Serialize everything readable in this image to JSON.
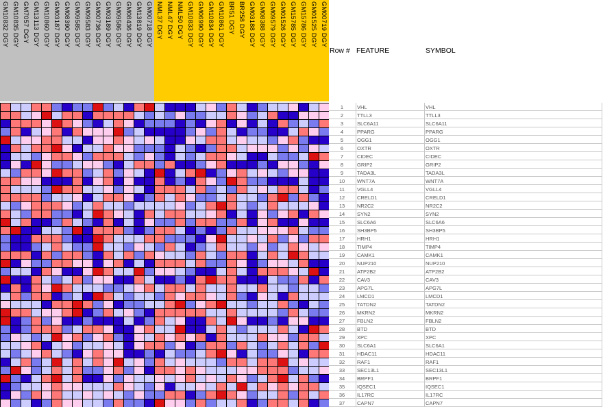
{
  "header": {
    "row_num": "Row #",
    "feature": "FEATURE",
    "symbol": "SYMBOL"
  },
  "colors": {
    "group_1": "#c0c0c0",
    "group_2": "#ffcc00",
    "scale": {
      "-3": "#2600c8",
      "-2": "#7b7bf0",
      "-1": "#ccccff",
      "1": "#ffcdee",
      "2": "#ff7878",
      "3": "#dd1111"
    }
  },
  "chart_data": {
    "type": "heatmap",
    "columns": [
      "GM10832 DGY",
      "GM10835 DGY",
      "GM7057 DGY",
      "GM13113 DGY",
      "GM10860 DGY",
      "GM03187 DGY",
      "GM08390 DGY",
      "GM09585 DGY",
      "GM09583 DGY",
      "GM00736 DGY",
      "GM03189 DGY",
      "GM09586 DGY",
      "GM08436 DGY",
      "GM13819 DGY",
      "GM00718 DGY",
      "NML37 DGY",
      "NML47 DGY",
      "NML50 DGY",
      "GM10833 DGY",
      "GM06990 DGY",
      "GM10834 DGY",
      "GM10861 DGY",
      "BR51 DGY",
      "BR258 DGY",
      "GM03188 DGY",
      "GM08388 DGY",
      "GM09579 DGY",
      "GM01526 DGY",
      "GM15785 DGY",
      "GM15786 DGY",
      "GM01525 DGY",
      "GM00719 DGY"
    ],
    "column_groups": [
      {
        "color": "#c0c0c0",
        "count": 15
      },
      {
        "color": "#ffcc00",
        "count": 17
      }
    ],
    "rows": [
      {
        "n": "1",
        "feature": "VHL",
        "symbol": "VHL"
      },
      {
        "n": "2",
        "feature": "TTLL3",
        "symbol": "TTLL3"
      },
      {
        "n": "3",
        "feature": "SLC6A11",
        "symbol": "SLC6A11"
      },
      {
        "n": "4",
        "feature": "PPARG",
        "symbol": "PPARG"
      },
      {
        "n": "5",
        "feature": "OGG1",
        "symbol": "OGG1"
      },
      {
        "n": "6",
        "feature": "OXTR",
        "symbol": "OXTR"
      },
      {
        "n": "7",
        "feature": "CIDEC",
        "symbol": "CIDEC"
      },
      {
        "n": "8",
        "feature": "GRIP2",
        "symbol": "GRIP2"
      },
      {
        "n": "9",
        "feature": "TADA3L",
        "symbol": "TADA3L"
      },
      {
        "n": "10",
        "feature": "WNT7A",
        "symbol": "WNT7A"
      },
      {
        "n": "11",
        "feature": "VGLL4",
        "symbol": "VGLL4"
      },
      {
        "n": "12",
        "feature": "CRELD1",
        "symbol": "CRELD1"
      },
      {
        "n": "13",
        "feature": "NR2C2",
        "symbol": "NR2C2"
      },
      {
        "n": "14",
        "feature": "SYN2",
        "symbol": "SYN2"
      },
      {
        "n": "15",
        "feature": "SLC6A6",
        "symbol": "SLC6A6"
      },
      {
        "n": "16",
        "feature": "SH3BP5",
        "symbol": "SH3BP5"
      },
      {
        "n": "17",
        "feature": "HRH1",
        "symbol": "HRH1"
      },
      {
        "n": "18",
        "feature": "TIMP4",
        "symbol": "TIMP4"
      },
      {
        "n": "19",
        "feature": "CAMK1",
        "symbol": "CAMK1"
      },
      {
        "n": "20",
        "feature": "NUP210",
        "symbol": "NUP210"
      },
      {
        "n": "21",
        "feature": "ATP2B2",
        "symbol": "ATP2B2"
      },
      {
        "n": "22",
        "feature": "CAV3",
        "symbol": "CAV3"
      },
      {
        "n": "23",
        "feature": "APG7L",
        "symbol": "APG7L"
      },
      {
        "n": "24",
        "feature": "LMCD1",
        "symbol": "LMCD1"
      },
      {
        "n": "25",
        "feature": "TATDN2",
        "symbol": "TATDN2"
      },
      {
        "n": "26",
        "feature": "MKRN2",
        "symbol": "MKRN2"
      },
      {
        "n": "27",
        "feature": "FBLN2",
        "symbol": "FBLN2"
      },
      {
        "n": "28",
        "feature": "BTD",
        "symbol": "BTD"
      },
      {
        "n": "29",
        "feature": "XPC",
        "symbol": "XPC"
      },
      {
        "n": "30",
        "feature": "SLC6A1",
        "symbol": "SLC6A1"
      },
      {
        "n": "31",
        "feature": "HDAC11",
        "symbol": "HDAC11"
      },
      {
        "n": "32",
        "feature": "RAF1",
        "symbol": "RAF1"
      },
      {
        "n": "33",
        "feature": "SEC13L1",
        "symbol": "SEC13L1"
      },
      {
        "n": "34",
        "feature": "BRPF1",
        "symbol": "BRPF1"
      },
      {
        "n": "35",
        "feature": "IQSEC1",
        "symbol": "IQSEC1"
      },
      {
        "n": "36",
        "feature": "IL17RC",
        "symbol": "IL17RC"
      },
      {
        "n": "37",
        "feature": "CAPN7",
        "symbol": "CAPN7"
      }
    ],
    "values": [
      [
        2,
        -1,
        -1,
        2,
        2,
        -2,
        -3,
        -2,
        -2,
        3,
        -2,
        -1,
        -3,
        2,
        3,
        -1,
        -3,
        -3,
        -3,
        -1,
        1,
        -2,
        2,
        -1,
        -3,
        -2,
        -1,
        -1,
        1,
        -3,
        -1,
        1
      ],
      [
        2,
        2,
        -1,
        1,
        3,
        -1,
        2,
        2,
        -3,
        2,
        2,
        2,
        2,
        -1,
        -2,
        -1,
        -2,
        1,
        -2,
        -2,
        -1,
        -1,
        2,
        1,
        -2,
        -1,
        2,
        -3,
        -3,
        1,
        1,
        1
      ],
      [
        -3,
        2,
        2,
        2,
        1,
        3,
        2,
        1,
        -2,
        -3,
        -1,
        2,
        1,
        -3,
        -2,
        -2,
        -2,
        -3,
        -2,
        -3,
        1,
        2,
        -3,
        1,
        -3,
        -1,
        -3,
        2,
        -2,
        -1,
        -2,
        2
      ],
      [
        -2,
        2,
        -3,
        -1,
        1,
        2,
        -3,
        2,
        1,
        1,
        1,
        3,
        -2,
        -1,
        -3,
        -3,
        -3,
        -3,
        -2,
        1,
        -2,
        2,
        -1,
        -3,
        -2,
        -2,
        -3,
        -3,
        -1,
        2,
        1,
        -2
      ],
      [
        3,
        -1,
        1,
        1,
        2,
        2,
        -1,
        -1,
        -3,
        1,
        1,
        2,
        1,
        -1,
        1,
        -1,
        -3,
        -3,
        1,
        -1,
        2,
        2,
        -1,
        1,
        -1,
        -1,
        -2,
        1,
        2,
        -2,
        -3,
        -3
      ],
      [
        -3,
        2,
        -1,
        2,
        2,
        3,
        1,
        -3,
        -1,
        -1,
        2,
        1,
        1,
        -2,
        -2,
        -2,
        -3,
        -1,
        -2,
        -3,
        -2,
        2,
        2,
        -1,
        1,
        1,
        1,
        -2,
        1,
        -2,
        1,
        -1
      ],
      [
        -3,
        -1,
        -1,
        -2,
        1,
        2,
        2,
        1,
        -2,
        2,
        2,
        2,
        -1,
        -2,
        1,
        -2,
        -3,
        -1,
        -2,
        -1,
        2,
        2,
        1,
        -1,
        -3,
        -3,
        -1,
        -2,
        -2,
        -1,
        3,
        2
      ],
      [
        -3,
        1,
        -3,
        3,
        1,
        -2,
        -2,
        -1,
        1,
        1,
        -2,
        -3,
        -1,
        2,
        2,
        -2,
        2,
        -3,
        -3,
        -2,
        1,
        2,
        -3,
        -3,
        -3,
        -2,
        -3,
        1,
        1,
        -2,
        -3,
        1
      ],
      [
        -1,
        -2,
        2,
        2,
        1,
        3,
        2,
        2,
        -2,
        -1,
        2,
        -2,
        1,
        -1,
        -3,
        3,
        -3,
        -1,
        2,
        3,
        -3,
        -2,
        1,
        2,
        -1,
        1,
        -1,
        -2,
        1,
        1,
        -3,
        -3
      ],
      [
        2,
        2,
        1,
        1,
        -3,
        -3,
        -3,
        2,
        -3,
        1,
        2,
        -3,
        1,
        -3,
        -3,
        2,
        -3,
        -2,
        -3,
        2,
        1,
        -2,
        3,
        2,
        -2,
        -2,
        -3,
        -3,
        -3,
        -1,
        -3,
        -3
      ],
      [
        2,
        -1,
        -1,
        -1,
        -2,
        3,
        2,
        2,
        -1,
        -1,
        1,
        -2,
        1,
        -1,
        -3,
        2,
        2,
        2,
        -1,
        2,
        -2,
        -1,
        -2,
        2,
        -1,
        1,
        -1,
        2,
        2,
        -1,
        -3,
        -2
      ],
      [
        2,
        2,
        2,
        2,
        -2,
        -1,
        -1,
        1,
        -3,
        -1,
        2,
        2,
        1,
        -3,
        -2,
        2,
        -1,
        2,
        1,
        -2,
        -2,
        -1,
        2,
        -1,
        -1,
        -2,
        2,
        3,
        -2,
        2,
        -2,
        -3
      ],
      [
        -1,
        -2,
        1,
        2,
        2,
        2,
        1,
        -2,
        -1,
        2,
        -1,
        -1,
        -2,
        -1,
        -1,
        -1,
        -1,
        1,
        -2,
        -1,
        2,
        3,
        2,
        -1,
        -2,
        -1,
        2,
        -1,
        -1,
        -1,
        1,
        -3
      ],
      [
        2,
        -1,
        -2,
        2,
        2,
        -2,
        -2,
        -3,
        -1,
        3,
        2,
        1,
        -1,
        -3,
        2,
        -1,
        2,
        2,
        -1,
        -1,
        1,
        2,
        -3,
        -1,
        -3,
        1,
        -2,
        1,
        2,
        -3,
        2,
        1
      ],
      [
        3,
        -1,
        2,
        -3,
        -3,
        -2,
        2,
        -1,
        -2,
        -3,
        2,
        -3,
        -1,
        -3,
        1,
        -2,
        -2,
        2,
        -2,
        2,
        2,
        -2,
        -2,
        2,
        -3,
        1,
        2,
        -3,
        -3,
        1,
        -3,
        -3
      ],
      [
        2,
        3,
        -3,
        -3,
        -1,
        -1,
        -2,
        3,
        -3,
        2,
        2,
        2,
        -2,
        -3,
        -2,
        2,
        2,
        -1,
        -3,
        -2,
        -3,
        -2,
        2,
        -1,
        -1,
        1,
        1,
        1,
        2,
        -1,
        -2,
        -2
      ],
      [
        -2,
        -3,
        -3,
        2,
        2,
        2,
        -2,
        -3,
        -3,
        3,
        2,
        -1,
        -1,
        -1,
        2,
        2,
        -2,
        -2,
        -2,
        -3,
        1,
        3,
        -1,
        -1,
        1,
        -1,
        2,
        -2,
        1,
        -2,
        2,
        2
      ],
      [
        -2,
        -3,
        -3,
        -2,
        -1,
        2,
        -1,
        -2,
        -2,
        3,
        -1,
        -1,
        -2,
        1,
        -1,
        -2,
        2,
        -1,
        -3,
        -2,
        -1,
        2,
        -1,
        -1,
        -2,
        1,
        -2,
        -1,
        2,
        1,
        -1,
        1
      ],
      [
        2,
        2,
        2,
        -3,
        2,
        -2,
        2,
        2,
        -2,
        -3,
        2,
        -1,
        2,
        -2,
        2,
        1,
        -1,
        -1,
        -2,
        2,
        -1,
        -2,
        2,
        2,
        -3,
        -1,
        2,
        -1,
        3,
        2,
        -1,
        -1
      ],
      [
        3,
        -3,
        1,
        -2,
        -2,
        2,
        2,
        1,
        1,
        -3,
        1,
        2,
        -3,
        -1,
        -3,
        2,
        2,
        2,
        -1,
        2,
        -2,
        -2,
        2,
        1,
        -3,
        -2,
        1,
        1,
        -1,
        2,
        -3,
        -3
      ],
      [
        -2,
        -1,
        -1,
        -3,
        2,
        1,
        -3,
        -3,
        1,
        3,
        2,
        -1,
        -1,
        3,
        -2,
        1,
        1,
        -1,
        -2,
        -3,
        -3,
        -1,
        2,
        -1,
        -3,
        2,
        2,
        2,
        1,
        -1,
        3,
        -3
      ],
      [
        3,
        -3,
        -3,
        2,
        -1,
        -2,
        -1,
        2,
        -2,
        1,
        1,
        -3,
        -3,
        2,
        -1,
        -3,
        -3,
        -2,
        -3,
        2,
        3,
        2,
        2,
        -3,
        -3,
        -3,
        -1,
        -2,
        -2,
        2,
        -3,
        2
      ],
      [
        -3,
        2,
        -3,
        2,
        1,
        3,
        2,
        -1,
        -1,
        -1,
        -2,
        -2,
        -1,
        1,
        2,
        -1,
        2,
        2,
        -1,
        2,
        -1,
        -1,
        2,
        -1,
        -1,
        2,
        -1,
        -1,
        -2,
        -1,
        -1,
        -2
      ],
      [
        -1,
        2,
        -2,
        2,
        2,
        -3,
        -2,
        -1,
        -3,
        3,
        2,
        -1,
        -2,
        -1,
        -1,
        -2,
        2,
        1,
        2,
        2,
        1,
        -1,
        2,
        -2,
        -3,
        1,
        -1,
        -3,
        2,
        -1,
        -1,
        -1
      ],
      [
        1,
        -1,
        -1,
        -1,
        -3,
        2,
        2,
        3,
        2,
        -2,
        1,
        -3,
        -2,
        -2,
        -1,
        -1,
        2,
        3,
        -2,
        1,
        2,
        3,
        -1,
        -1,
        -2,
        -1,
        -1,
        2,
        -2,
        -3,
        -1,
        -2
      ],
      [
        3,
        2,
        2,
        -1,
        1,
        1,
        2,
        3,
        -3,
        -2,
        2,
        -1,
        1,
        -2,
        -3,
        2,
        2,
        2,
        2,
        2,
        -1,
        -1,
        2,
        -1,
        -1,
        -1,
        -1,
        -2,
        2,
        -1,
        -2,
        -2
      ],
      [
        3,
        -3,
        -2,
        2,
        -2,
        1,
        -3,
        -3,
        -2,
        -3,
        -3,
        -3,
        -1,
        -3,
        -2,
        2,
        -1,
        1,
        -3,
        -3,
        2,
        -1,
        3,
        1,
        -3,
        -3,
        -2,
        -3,
        1,
        1,
        -3,
        -3
      ],
      [
        -2,
        -3,
        -2,
        2,
        2,
        2,
        -2,
        -1,
        2,
        2,
        1,
        -3,
        -3,
        1,
        2,
        -1,
        -1,
        3,
        -3,
        -3,
        -1,
        2,
        -1,
        -2,
        -1,
        -1,
        -1,
        2,
        -1,
        -3,
        3,
        2
      ],
      [
        -2,
        1,
        -1,
        -2,
        -1,
        3,
        1,
        2,
        -2,
        1,
        2,
        -2,
        -3,
        1,
        -1,
        2,
        1,
        2,
        1,
        2,
        -3,
        2,
        -1,
        -1,
        -1,
        2,
        1,
        1,
        -2,
        2,
        2,
        -1
      ],
      [
        -1,
        -1,
        1,
        2,
        -3,
        -1,
        1,
        -2,
        -1,
        -1,
        1,
        -1,
        -3,
        1,
        2,
        2,
        -2,
        1,
        -3,
        -2,
        2,
        2,
        -2,
        2,
        -1,
        -2,
        -1,
        2,
        -1,
        2,
        -2,
        3
      ],
      [
        -1,
        -2,
        -1,
        1,
        2,
        -1,
        -2,
        -3,
        1,
        2,
        1,
        1,
        -3,
        -3,
        -2,
        -3,
        -1,
        -2,
        -2,
        -1,
        2,
        3,
        1,
        -3,
        -1,
        -2,
        -2,
        1,
        -1,
        -3,
        2,
        2
      ],
      [
        -3,
        -1,
        2,
        -2,
        -1,
        3,
        -1,
        2,
        -1,
        2,
        1,
        3,
        -1,
        1,
        -2,
        2,
        -1,
        1,
        -1,
        -1,
        -1,
        -2,
        2,
        2,
        -1,
        2,
        2,
        3,
        -1,
        1,
        -1,
        -1
      ],
      [
        -2,
        3,
        1,
        -2,
        -1,
        2,
        -1,
        2,
        -2,
        -2,
        1,
        2,
        -2,
        1,
        -3,
        2,
        2,
        1,
        2,
        1,
        -1,
        -1,
        -1,
        1,
        1,
        2,
        2,
        2,
        -2,
        -1,
        -1,
        1
      ],
      [
        3,
        -2,
        -3,
        -1,
        2,
        3,
        -1,
        2,
        -3,
        -3,
        1,
        -2,
        1,
        -1,
        -1,
        1,
        -1,
        1,
        2,
        -1,
        1,
        -1,
        2,
        1,
        -2,
        -1,
        2,
        3,
        -1,
        2,
        -2,
        -3
      ],
      [
        -3,
        -2,
        -1,
        -1,
        1,
        2,
        1,
        1,
        -1,
        -1,
        -1,
        2,
        1,
        -1,
        -2,
        1,
        -3,
        -1,
        -1,
        1,
        -1,
        2,
        -1,
        3,
        -1,
        2,
        1,
        2,
        1,
        2,
        2,
        -1
      ],
      [
        -3,
        1,
        -2,
        2,
        1,
        2,
        -1,
        -1,
        1,
        -1,
        1,
        -1,
        -2,
        1,
        -2,
        -2,
        2,
        2,
        -3,
        -2,
        2,
        3,
        2,
        1,
        -2,
        -1,
        -1,
        2,
        -2,
        2,
        -1,
        2
      ],
      [
        1,
        -2,
        -1,
        -3,
        -2,
        2,
        1,
        1,
        -1,
        -1,
        -2,
        2,
        -2,
        -2,
        -3,
        3,
        1,
        1,
        -2,
        2,
        -2,
        -1,
        -1,
        2,
        -3,
        -2,
        2,
        2,
        -1,
        2,
        -3,
        -2
      ]
    ]
  }
}
